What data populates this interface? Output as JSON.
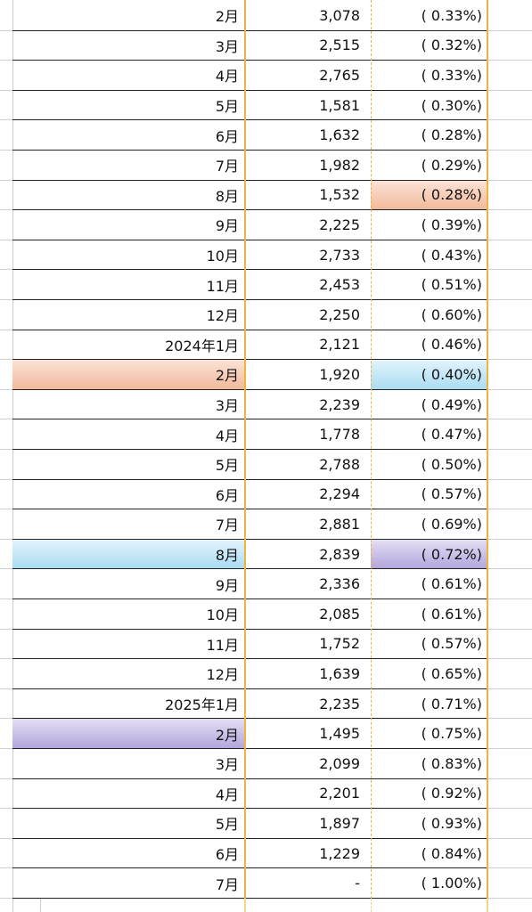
{
  "table": {
    "rows": [
      [
        "2月",
        "3,078",
        "( 0.33%)"
      ],
      [
        "3月",
        "2,515",
        "( 0.32%)"
      ],
      [
        "4月",
        "2,765",
        "( 0.33%)"
      ],
      [
        "5月",
        "1,581",
        "( 0.30%)"
      ],
      [
        "6月",
        "1,632",
        "( 0.28%)"
      ],
      [
        "7月",
        "1,982",
        "( 0.29%)"
      ],
      [
        "8月",
        "1,532",
        "( 0.28%)"
      ],
      [
        "9月",
        "2,225",
        "( 0.39%)"
      ],
      [
        "10月",
        "2,733",
        "( 0.43%)"
      ],
      [
        "11月",
        "2,453",
        "( 0.51%)"
      ],
      [
        "12月",
        "2,250",
        "( 0.60%)"
      ],
      [
        "2024年1月",
        "2,121",
        "( 0.46%)"
      ],
      [
        "2月",
        "1,920",
        "( 0.40%)"
      ],
      [
        "3月",
        "2,239",
        "( 0.49%)"
      ],
      [
        "4月",
        "1,778",
        "( 0.47%)"
      ],
      [
        "5月",
        "2,788",
        "( 0.50%)"
      ],
      [
        "6月",
        "2,294",
        "( 0.57%)"
      ],
      [
        "7月",
        "2,881",
        "( 0.69%)"
      ],
      [
        "8月",
        "2,839",
        "( 0.72%)"
      ],
      [
        "9月",
        "2,336",
        "( 0.61%)"
      ],
      [
        "10月",
        "2,085",
        "( 0.61%)"
      ],
      [
        "11月",
        "1,752",
        "( 0.57%)"
      ],
      [
        "12月",
        "1,639",
        "( 0.65%)"
      ],
      [
        "2025年1月",
        "2,235",
        "( 0.71%)"
      ],
      [
        "2月",
        "1,495",
        "( 0.75%)"
      ],
      [
        "3月",
        "2,099",
        "( 0.83%)"
      ],
      [
        "4月",
        "2,201",
        "( 0.92%)"
      ],
      [
        "5月",
        "1,897",
        "( 0.93%)"
      ],
      [
        "6月",
        "1,229",
        "( 0.84%)"
      ],
      [
        "7月",
        "-",
        "( 1.00%)"
      ]
    ]
  }
}
